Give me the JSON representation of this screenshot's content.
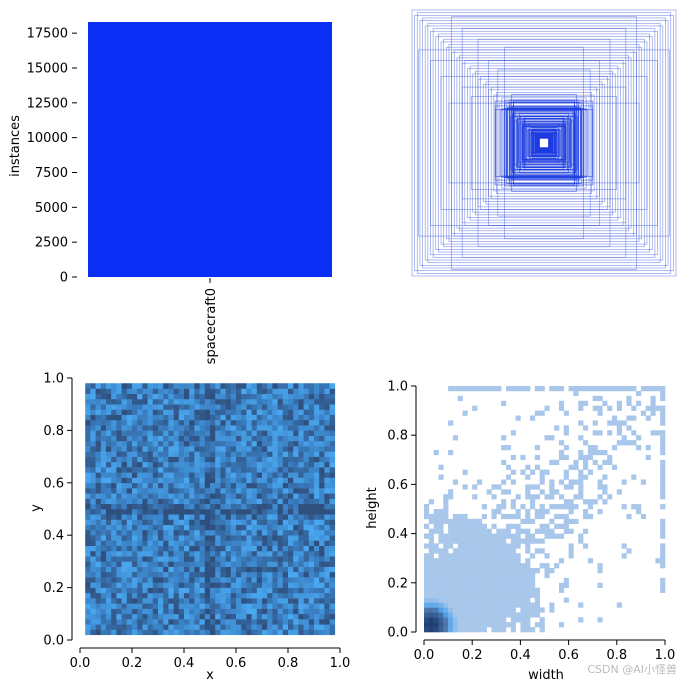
{
  "colors": {
    "bar": "#0b2ff5",
    "box_stroke": "#2f4fd8",
    "xy_dark": "#2f4f7d",
    "xy_mid": "#3b82c6",
    "xy_light": "#4aa8f0",
    "wh_light": "#a8c7ea",
    "wh_dark": "#1f3f73"
  },
  "chart_data": [
    {
      "type": "bar",
      "categories": [
        "spacecraft0"
      ],
      "values": [
        18300
      ],
      "xlabel": "",
      "ylabel": "instances",
      "ylim": [
        0,
        18300
      ],
      "yticks": [
        0,
        2500,
        5000,
        7500,
        10000,
        12500,
        15000,
        17500
      ],
      "yticklabels": [
        "0",
        "2500",
        "5000",
        "7500",
        "10000",
        "12500",
        "15000",
        "17500"
      ],
      "grid": false
    },
    {
      "type": "scatter",
      "description_kind": "bounding-box-outline-overlay",
      "axes_visible": false,
      "x_center": 0.5,
      "y_center": 0.5,
      "xlim": [
        0,
        1
      ],
      "ylim": [
        0,
        1
      ],
      "box_sizes": [
        [
          0.05,
          0.06
        ],
        [
          0.08,
          0.07
        ],
        [
          0.1,
          0.12
        ],
        [
          0.12,
          0.1
        ],
        [
          0.14,
          0.16
        ],
        [
          0.16,
          0.14
        ],
        [
          0.18,
          0.2
        ],
        [
          0.2,
          0.18
        ],
        [
          0.22,
          0.24
        ],
        [
          0.24,
          0.22
        ],
        [
          0.26,
          0.28
        ],
        [
          0.28,
          0.26
        ],
        [
          0.3,
          0.3
        ],
        [
          0.32,
          0.34
        ],
        [
          0.34,
          0.3
        ],
        [
          0.36,
          0.38
        ],
        [
          0.38,
          0.36
        ],
        [
          0.4,
          0.42
        ],
        [
          0.42,
          0.4
        ],
        [
          0.44,
          0.46
        ],
        [
          0.46,
          0.44
        ],
        [
          0.48,
          0.5
        ],
        [
          0.5,
          0.48
        ],
        [
          0.52,
          0.54
        ],
        [
          0.54,
          0.52
        ],
        [
          0.56,
          0.58
        ],
        [
          0.58,
          0.56
        ],
        [
          0.6,
          0.62
        ],
        [
          0.62,
          0.6
        ],
        [
          0.64,
          0.66
        ],
        [
          0.66,
          0.64
        ],
        [
          0.68,
          0.7
        ],
        [
          0.7,
          0.68
        ],
        [
          0.72,
          0.74
        ],
        [
          0.74,
          0.72
        ],
        [
          0.76,
          0.78
        ],
        [
          0.78,
          0.76
        ],
        [
          0.8,
          0.82
        ],
        [
          0.82,
          0.8
        ],
        [
          0.84,
          0.86
        ],
        [
          0.86,
          0.84
        ],
        [
          0.88,
          0.9
        ],
        [
          0.9,
          0.88
        ],
        [
          0.92,
          0.94
        ],
        [
          0.94,
          0.92
        ],
        [
          0.96,
          0.98
        ],
        [
          0.98,
          0.96
        ],
        [
          1.0,
          1.0
        ],
        [
          0.62,
          0.42
        ],
        [
          0.42,
          0.62
        ],
        [
          0.78,
          0.5
        ],
        [
          0.5,
          0.78
        ],
        [
          0.72,
          0.3
        ],
        [
          0.3,
          0.72
        ],
        [
          0.86,
          0.62
        ],
        [
          0.62,
          0.86
        ],
        [
          0.95,
          0.7
        ],
        [
          0.7,
          0.95
        ],
        [
          0.55,
          0.35
        ],
        [
          0.35,
          0.55
        ]
      ]
    },
    {
      "type": "heatmap",
      "xlabel": "x",
      "ylabel": "y",
      "xlim": [
        0,
        1
      ],
      "ylim": [
        0,
        1
      ],
      "xticks": [
        0.0,
        0.2,
        0.4,
        0.6,
        0.8,
        1.0
      ],
      "yticks": [
        0.0,
        0.2,
        0.4,
        0.6,
        0.8,
        1.0
      ],
      "xticklabels": [
        "0.0",
        "0.2",
        "0.4",
        "0.6",
        "0.8",
        "1.0"
      ],
      "yticklabels": [
        "0.0",
        "0.2",
        "0.4",
        "0.6",
        "0.8",
        "1.0"
      ],
      "data_range": [
        0.03,
        0.97
      ],
      "bins": 50
    },
    {
      "type": "heatmap",
      "xlabel": "width",
      "ylabel": "height",
      "xlim": [
        0,
        1
      ],
      "ylim": [
        0,
        1
      ],
      "xticks": [
        0.0,
        0.2,
        0.4,
        0.6,
        0.8,
        1.0
      ],
      "yticks": [
        0.0,
        0.2,
        0.4,
        0.6,
        0.8,
        1.0
      ],
      "xticklabels": [
        "0.0",
        "0.2",
        "0.4",
        "0.6",
        "0.8",
        "1.0"
      ],
      "yticklabels": [
        "0.0",
        "0.2",
        "0.4",
        "0.6",
        "0.8",
        "1.0"
      ],
      "bins": 50,
      "density_peak": [
        0.03,
        0.03
      ]
    }
  ],
  "watermark": "CSDN @AI小怪兽"
}
